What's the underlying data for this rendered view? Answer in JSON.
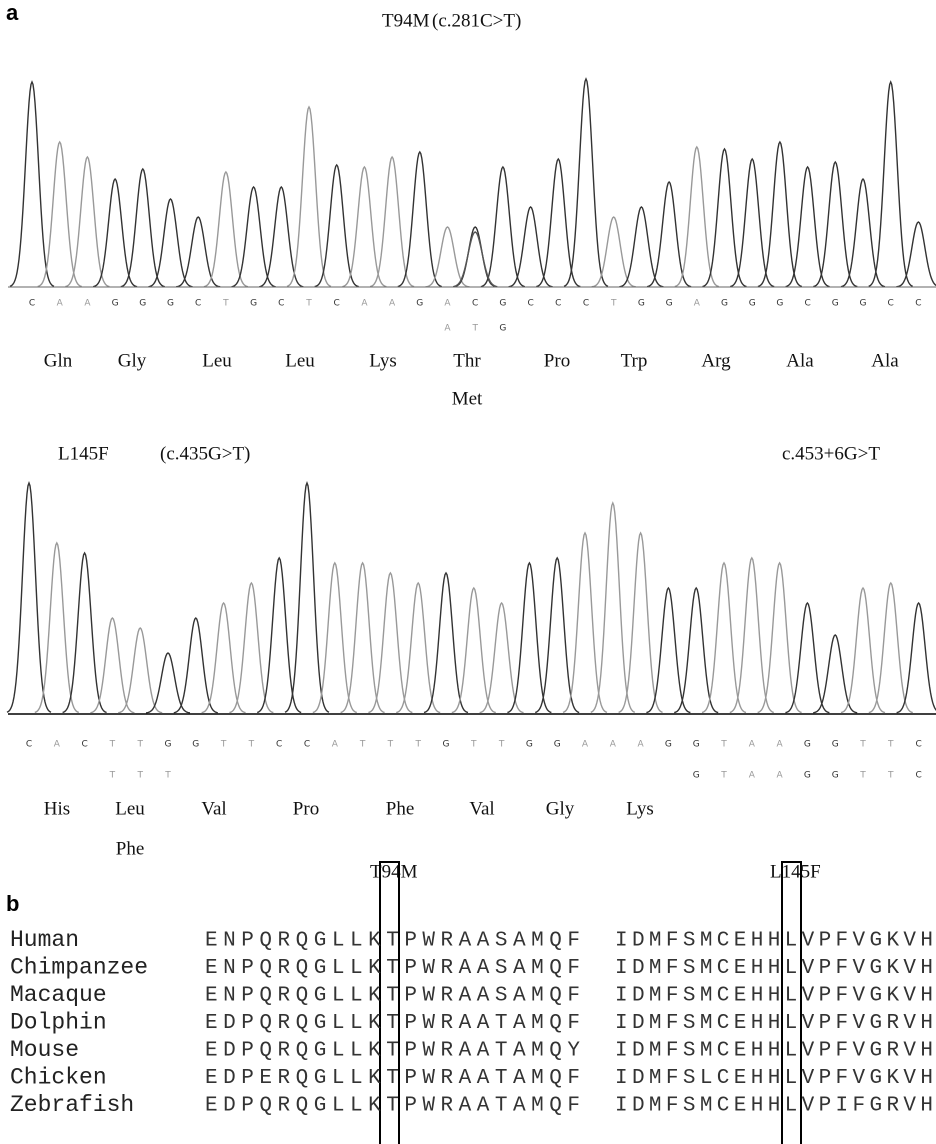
{
  "panel_a": {
    "label": "a",
    "trace1": {
      "mutation": "T94M",
      "hgvs": "(c.281C>T)",
      "bases": [
        "C",
        "A",
        "A",
        "G",
        "G",
        "G",
        "C",
        "T",
        "G",
        "C",
        "T",
        "C",
        "A",
        "A",
        "G",
        "A",
        "C",
        "G",
        "C",
        "C",
        "C",
        "T",
        "G",
        "G",
        "A",
        "G",
        "G",
        "G",
        "C",
        "G",
        "G",
        "C",
        "C"
      ],
      "alt_bases": [
        "A",
        "T",
        "G"
      ],
      "amino_acids": [
        "Gln",
        "Gly",
        "Leu",
        "Leu",
        "Lys",
        "Thr",
        "Pro",
        "Trp",
        "Arg",
        "Ala",
        "Ala"
      ],
      "alt_amino_acid": "Met"
    },
    "trace2": {
      "mutation": "L145F",
      "hgvs": "(c.435G>T)",
      "second_variant": "c.453+6G>T",
      "bases": [
        "C",
        "A",
        "C",
        "T",
        "T",
        "G",
        "G",
        "T",
        "T",
        "C",
        "C",
        "A",
        "T",
        "T",
        "T",
        "G",
        "T",
        "T",
        "G",
        "G",
        "A",
        "A",
        "A",
        "G",
        "G",
        "T",
        "A",
        "A",
        "G",
        "G",
        "T",
        "T",
        "C"
      ],
      "alt_bases_1": [
        "T",
        "T",
        "T"
      ],
      "alt_bases_2": [
        "G",
        "T",
        "A",
        "A",
        "G",
        "G",
        "T",
        "T",
        "C"
      ],
      "amino_acids": [
        "His",
        "Leu",
        "Val",
        "Pro",
        "Phe",
        "Val",
        "Gly",
        "Lys"
      ],
      "alt_amino_acid": "Phe"
    }
  },
  "panel_b": {
    "label": "b",
    "headers": [
      "T94M",
      "L145F"
    ],
    "rows": [
      {
        "species": "Human",
        "seq1": "ENPQRQGLLKTPWRAASAMQF",
        "seq2": "IDMFSMCEHHLVPFVGKVH"
      },
      {
        "species": "Chimpanzee",
        "seq1": "ENPQRQGLLKTPWRAASAMQF",
        "seq2": "IDMFSMCEHHLVPFVGKVH"
      },
      {
        "species": "Macaque",
        "seq1": "ENPQRQGLLKTPWRAASAMQF",
        "seq2": "IDMFSMCEHHLVPFVGKVH"
      },
      {
        "species": "Dolphin",
        "seq1": "EDPQRQGLLKTPWRAATAMQF",
        "seq2": "IDMFSMCEHHLVPFVGRVH"
      },
      {
        "species": "Mouse",
        "seq1": "EDPQRQGLLKTPWRAATAMQY",
        "seq2": "IDMFSMCEHHLVPFVGRVH"
      },
      {
        "species": "Chicken",
        "seq1": "EDPERQGLLKTPWRAATAMQF",
        "seq2": "IDMFSLCEHHLVPFVGKVH"
      },
      {
        "species": "Zebrafish",
        "seq1": "EDPQRQGLLKTPWRAATAMQF",
        "seq2": "IDMFSMCEHHLVPIFGRVH"
      }
    ]
  }
}
